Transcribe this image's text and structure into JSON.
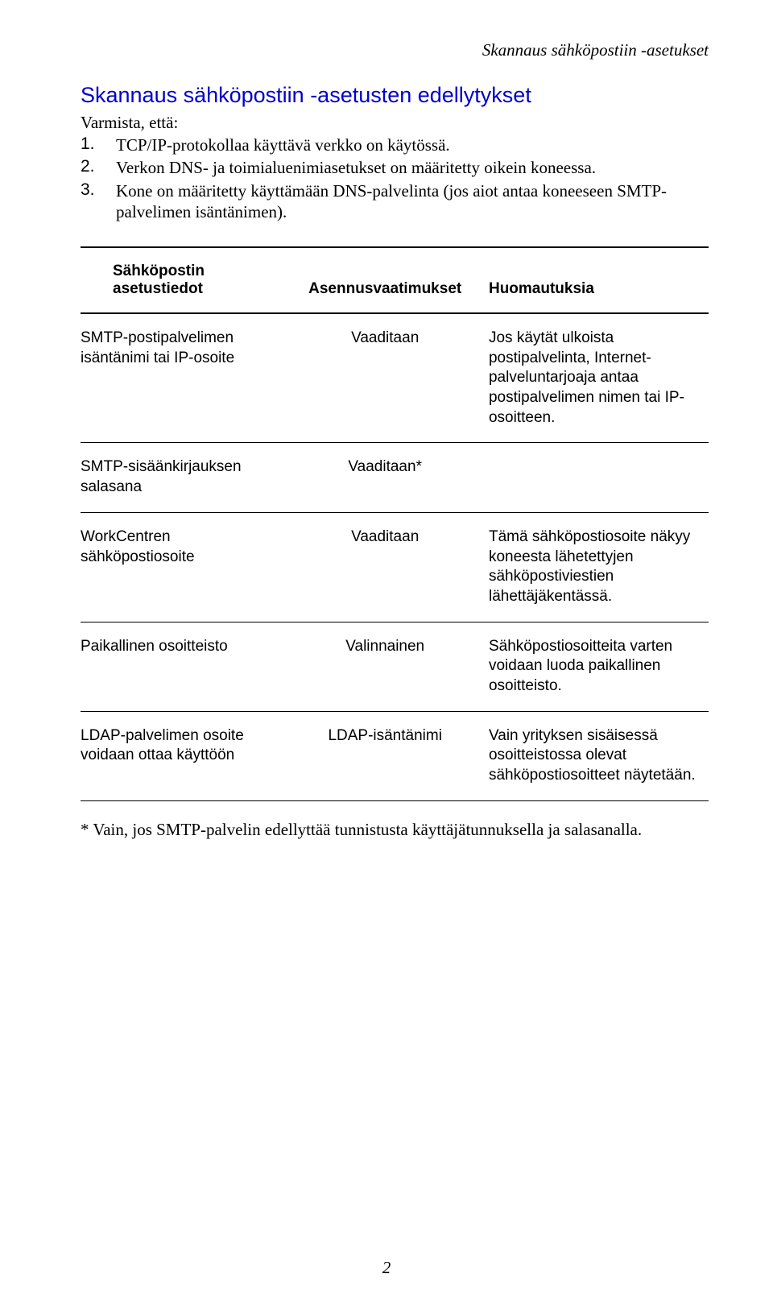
{
  "header_right": "Skannaus sähköpostiin -asetukset",
  "section_title": "Skannaus sähköpostiin -asetusten edellytykset",
  "intro_line": "Varmista, että:",
  "numbered_items": [
    {
      "num": "1.",
      "text": "TCP/IP-protokollaa käyttävä verkko on käytössä."
    },
    {
      "num": "2.",
      "text": "Verkon DNS- ja toimialuenimiasetukset on määritetty oikein koneessa."
    },
    {
      "num": "3.",
      "text": "Kone on määritetty käyttämään DNS-palvelinta (jos aiot antaa koneeseen SMTP-palvelimen isäntänimen)."
    }
  ],
  "table": {
    "columns": [
      "Sähköpostin asetustiedot",
      "Asennusvaatimukset",
      "Huomautuksia"
    ],
    "rows": [
      {
        "c1": "SMTP-postipalvelimen isäntänimi tai IP-osoite",
        "c2": "Vaaditaan",
        "c3": "Jos käytät ulkoista postipalvelinta, Internet-palveluntarjoaja antaa postipalvelimen nimen tai IP-osoitteen."
      },
      {
        "c1": "SMTP-sisäänkirjauksen salasana",
        "c2": "Vaaditaan*",
        "c3": ""
      },
      {
        "c1": "WorkCentren sähköpostiosoite",
        "c2": "Vaaditaan",
        "c3": "Tämä sähköpostiosoite näkyy koneesta lähetettyjen sähköpostiviestien lähettäjäkentässä."
      },
      {
        "c1": "Paikallinen osoitteisto",
        "c2": "Valinnainen",
        "c3": "Sähköpostiosoitteita varten voidaan luoda paikallinen osoitteisto."
      },
      {
        "c1": "LDAP-palvelimen osoite voidaan ottaa käyttöön",
        "c2": "LDAP-isäntänimi",
        "c3": "Vain yrityksen sisäisessä osoitteistossa olevat sähköpostiosoitteet näytetään."
      }
    ]
  },
  "footnote": "* Vain, jos SMTP-palvelin edellyttää tunnistusta käyttäjätunnuksella ja salasanalla.",
  "page_number": "2"
}
